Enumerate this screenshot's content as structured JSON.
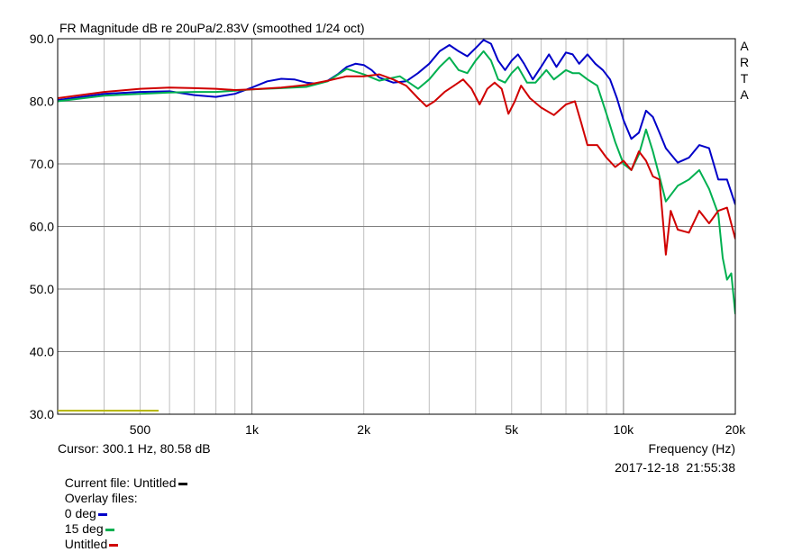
{
  "chart_data": {
    "type": "line",
    "title": "FR Magnitude dB re 20uPa/2.83V (smoothed 1/24 oct)",
    "xlabel": "Frequency (Hz)",
    "ylabel": "",
    "x_scale": "log",
    "xlim": [
      300,
      20000
    ],
    "ylim": [
      30,
      90
    ],
    "grid": true,
    "y_ticks": [
      30,
      40,
      50,
      60,
      70,
      80,
      90
    ],
    "y_tick_labels": [
      "30.0",
      "40.0",
      "50.0",
      "60.0",
      "70.0",
      "80.0",
      "90.0"
    ],
    "x_ticks": [
      500,
      1000,
      2000,
      5000,
      10000,
      20000
    ],
    "x_tick_labels": [
      "500",
      "1k",
      "2k",
      "5k",
      "10k",
      "20k"
    ],
    "watermark": "ARTA",
    "series": [
      {
        "name": "0 deg",
        "color": "#0000c8",
        "points": [
          [
            300,
            80.2
          ],
          [
            400,
            81.2
          ],
          [
            500,
            81.5
          ],
          [
            600,
            81.6
          ],
          [
            700,
            81.0
          ],
          [
            800,
            80.7
          ],
          [
            900,
            81.2
          ],
          [
            1000,
            82.2
          ],
          [
            1100,
            83.2
          ],
          [
            1200,
            83.6
          ],
          [
            1300,
            83.5
          ],
          [
            1400,
            83.0
          ],
          [
            1500,
            82.8
          ],
          [
            1600,
            83.3
          ],
          [
            1700,
            84.3
          ],
          [
            1800,
            85.5
          ],
          [
            1900,
            86.0
          ],
          [
            2000,
            85.8
          ],
          [
            2100,
            85.0
          ],
          [
            2200,
            83.8
          ],
          [
            2400,
            83.0
          ],
          [
            2600,
            83.2
          ],
          [
            2800,
            84.5
          ],
          [
            3000,
            86.0
          ],
          [
            3200,
            88.0
          ],
          [
            3400,
            89.0
          ],
          [
            3600,
            88.0
          ],
          [
            3800,
            87.2
          ],
          [
            4000,
            88.5
          ],
          [
            4200,
            89.8
          ],
          [
            4400,
            89.2
          ],
          [
            4600,
            86.5
          ],
          [
            4800,
            85.0
          ],
          [
            5000,
            86.5
          ],
          [
            5200,
            87.5
          ],
          [
            5400,
            86.0
          ],
          [
            5700,
            83.5
          ],
          [
            6000,
            85.5
          ],
          [
            6300,
            87.5
          ],
          [
            6600,
            85.5
          ],
          [
            7000,
            87.8
          ],
          [
            7300,
            87.5
          ],
          [
            7600,
            86.0
          ],
          [
            8000,
            87.5
          ],
          [
            8400,
            86.0
          ],
          [
            8800,
            85.0
          ],
          [
            9200,
            83.5
          ],
          [
            9600,
            80.5
          ],
          [
            10000,
            77.0
          ],
          [
            10500,
            74.0
          ],
          [
            11000,
            75.0
          ],
          [
            11500,
            78.5
          ],
          [
            12000,
            77.5
          ],
          [
            12500,
            75.0
          ],
          [
            13000,
            72.5
          ],
          [
            14000,
            70.2
          ],
          [
            15000,
            71.0
          ],
          [
            16000,
            73.0
          ],
          [
            17000,
            72.5
          ],
          [
            18000,
            67.5
          ],
          [
            19000,
            67.5
          ],
          [
            20000,
            63.5
          ]
        ]
      },
      {
        "name": "15 deg",
        "color": "#00b050",
        "points": [
          [
            300,
            80.0
          ],
          [
            400,
            80.9
          ],
          [
            500,
            81.2
          ],
          [
            600,
            81.4
          ],
          [
            700,
            81.5
          ],
          [
            800,
            81.5
          ],
          [
            900,
            81.7
          ],
          [
            1000,
            81.9
          ],
          [
            1200,
            82.1
          ],
          [
            1400,
            82.3
          ],
          [
            1600,
            83.2
          ],
          [
            1800,
            85.2
          ],
          [
            2000,
            84.3
          ],
          [
            2200,
            83.3
          ],
          [
            2500,
            84.0
          ],
          [
            2800,
            82.0
          ],
          [
            3000,
            83.5
          ],
          [
            3200,
            85.5
          ],
          [
            3400,
            87.0
          ],
          [
            3600,
            85.0
          ],
          [
            3800,
            84.5
          ],
          [
            4000,
            86.5
          ],
          [
            4200,
            88.0
          ],
          [
            4400,
            86.5
          ],
          [
            4600,
            83.5
          ],
          [
            4800,
            83.0
          ],
          [
            5000,
            84.5
          ],
          [
            5200,
            85.5
          ],
          [
            5500,
            83.0
          ],
          [
            5800,
            83.0
          ],
          [
            6200,
            85.0
          ],
          [
            6500,
            83.5
          ],
          [
            7000,
            85.0
          ],
          [
            7300,
            84.5
          ],
          [
            7600,
            84.5
          ],
          [
            8000,
            83.5
          ],
          [
            8500,
            82.5
          ],
          [
            9000,
            78.0
          ],
          [
            9500,
            73.5
          ],
          [
            10000,
            70.0
          ],
          [
            10500,
            69.0
          ],
          [
            11000,
            71.5
          ],
          [
            11500,
            75.5
          ],
          [
            12000,
            72.0
          ],
          [
            12500,
            68.0
          ],
          [
            13000,
            64.0
          ],
          [
            14000,
            66.5
          ],
          [
            15000,
            67.5
          ],
          [
            16000,
            69.0
          ],
          [
            17000,
            66.0
          ],
          [
            18000,
            62.0
          ],
          [
            18500,
            55.0
          ],
          [
            19000,
            51.5
          ],
          [
            19500,
            52.5
          ],
          [
            20000,
            46.0
          ]
        ]
      },
      {
        "name": "Untitled",
        "color": "#d00000",
        "points": [
          [
            300,
            80.5
          ],
          [
            400,
            81.5
          ],
          [
            500,
            82.0
          ],
          [
            600,
            82.2
          ],
          [
            700,
            82.1
          ],
          [
            800,
            82.0
          ],
          [
            900,
            81.8
          ],
          [
            1000,
            81.9
          ],
          [
            1200,
            82.2
          ],
          [
            1400,
            82.6
          ],
          [
            1600,
            83.3
          ],
          [
            1800,
            84.0
          ],
          [
            2000,
            84.0
          ],
          [
            2200,
            84.3
          ],
          [
            2400,
            83.5
          ],
          [
            2600,
            82.5
          ],
          [
            2800,
            80.5
          ],
          [
            2950,
            79.2
          ],
          [
            3100,
            80.0
          ],
          [
            3300,
            81.5
          ],
          [
            3500,
            82.5
          ],
          [
            3700,
            83.5
          ],
          [
            3900,
            82.0
          ],
          [
            4100,
            79.5
          ],
          [
            4300,
            82.0
          ],
          [
            4500,
            83.0
          ],
          [
            4700,
            82.0
          ],
          [
            4900,
            78.0
          ],
          [
            5100,
            80.0
          ],
          [
            5300,
            82.5
          ],
          [
            5600,
            80.5
          ],
          [
            6000,
            79.0
          ],
          [
            6500,
            77.8
          ],
          [
            7000,
            79.5
          ],
          [
            7400,
            80.0
          ],
          [
            7700,
            76.5
          ],
          [
            8000,
            73.0
          ],
          [
            8500,
            73.0
          ],
          [
            9000,
            71.0
          ],
          [
            9500,
            69.5
          ],
          [
            10000,
            70.5
          ],
          [
            10500,
            69.0
          ],
          [
            11000,
            72.0
          ],
          [
            11500,
            70.5
          ],
          [
            12000,
            68.0
          ],
          [
            12500,
            67.5
          ],
          [
            13000,
            55.5
          ],
          [
            13400,
            62.5
          ],
          [
            14000,
            59.5
          ],
          [
            15000,
            59.0
          ],
          [
            16000,
            62.5
          ],
          [
            17000,
            60.5
          ],
          [
            18000,
            62.5
          ],
          [
            19000,
            63.0
          ],
          [
            20000,
            58.0
          ]
        ]
      }
    ]
  },
  "footer": {
    "cursor": "Cursor: 300.1 Hz, 80.58 dB",
    "current_file_label": "Current file: Untitled",
    "overlay_label": "Overlay files:",
    "overlay_items": [
      "0 deg",
      "15 deg",
      "Untitled"
    ],
    "frequency_label": "Frequency (Hz)",
    "timestamp": "2017-12-18  21:55:38"
  },
  "colors": {
    "current_file": "#000000",
    "background": "#ffffff",
    "grid_minor": "#c0c0c0",
    "grid_major": "#808080",
    "baseline_marker": "#b8b800"
  }
}
